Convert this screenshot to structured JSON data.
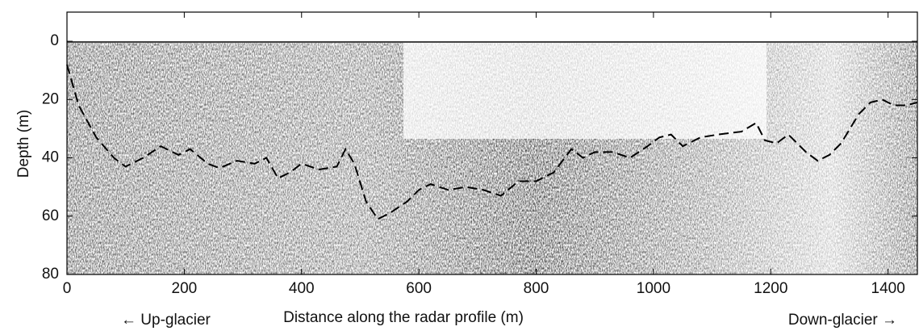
{
  "chart_data": {
    "type": "line",
    "x_label": "Distance along the radar profile (m)",
    "y_label": "Depth (m)",
    "annotations": [
      "← Up-glacier",
      "Down-glacier →"
    ],
    "x": [
      0,
      20,
      50,
      80,
      100,
      130,
      160,
      190,
      210,
      240,
      260,
      290,
      320,
      340,
      360,
      380,
      400,
      430,
      460,
      475,
      490,
      510,
      530,
      550,
      580,
      600,
      620,
      650,
      680,
      710,
      740,
      770,
      800,
      830,
      860,
      880,
      900,
      930,
      960,
      990,
      1010,
      1030,
      1050,
      1080,
      1110,
      1150,
      1175,
      1190,
      1210,
      1230,
      1260,
      1280,
      1300,
      1320,
      1350,
      1370,
      1390,
      1410,
      1430,
      1450
    ],
    "series": [
      {
        "color": "#000000",
        "dashed": true,
        "values": [
          8,
          22,
          33,
          40,
          43,
          40,
          36,
          39,
          37,
          42,
          43.5,
          41,
          42,
          40,
          47,
          45,
          42,
          44,
          43,
          37,
          42,
          55,
          61,
          59,
          55,
          51,
          49,
          51,
          50,
          51,
          53,
          48,
          48,
          45,
          37,
          40,
          38,
          38,
          40,
          36,
          33,
          32,
          36,
          33,
          32,
          31,
          28,
          34,
          35,
          32,
          38,
          41,
          39,
          35,
          25,
          21,
          20,
          22,
          22,
          21
        ]
      }
    ],
    "xlim": [
      0,
      1450
    ],
    "xticks": [
      0,
      200,
      400,
      600,
      800,
      1000,
      1200,
      1400
    ],
    "ylim": [
      -10,
      80
    ],
    "yticks": [
      0,
      20,
      40,
      60,
      80
    ],
    "y_inverted": true,
    "grid": false
  }
}
